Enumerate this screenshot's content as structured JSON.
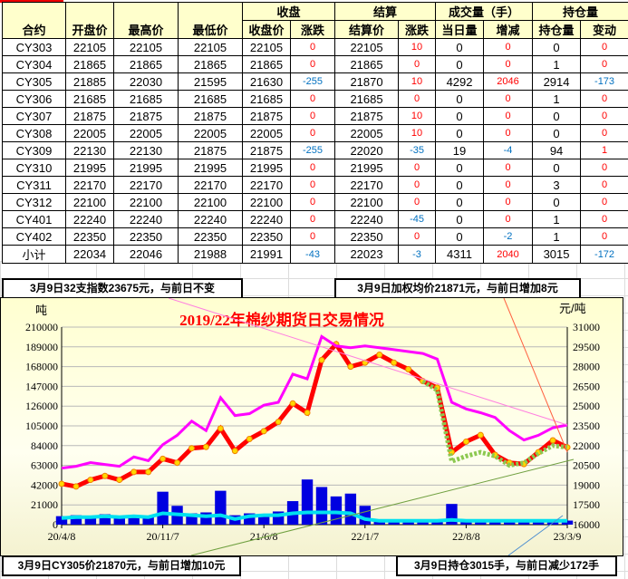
{
  "table": {
    "group_headers": {
      "close": "收盘",
      "settle": "结算",
      "volume": "成交量（手）",
      "oi": "持仓量"
    },
    "columns": [
      "合约",
      "开盘价",
      "最高价",
      "最低价",
      "收盘价",
      "涨跌",
      "结算价",
      "涨跌",
      "当日量",
      "增减",
      "持仓量",
      "变动"
    ],
    "rows": [
      [
        "CY303",
        "22105",
        "22105",
        "22105",
        "22105",
        "0",
        "22105",
        "10",
        "0",
        "0",
        "0",
        "0"
      ],
      [
        "CY304",
        "21865",
        "21865",
        "21865",
        "21865",
        "0",
        "21865",
        "0",
        "0",
        "0",
        "1",
        "0"
      ],
      [
        "CY305",
        "21885",
        "22030",
        "21595",
        "21630",
        "-255",
        "21870",
        "10",
        "4292",
        "2046",
        "2914",
        "-173"
      ],
      [
        "CY306",
        "21685",
        "21685",
        "21685",
        "21685",
        "0",
        "21685",
        "0",
        "0",
        "0",
        "1",
        "0"
      ],
      [
        "CY307",
        "21875",
        "21875",
        "21875",
        "21875",
        "0",
        "21875",
        "10",
        "0",
        "0",
        "0",
        "0"
      ],
      [
        "CY308",
        "22005",
        "22005",
        "22005",
        "22005",
        "0",
        "22005",
        "10",
        "0",
        "0",
        "0",
        "0"
      ],
      [
        "CY309",
        "22130",
        "22130",
        "21875",
        "21875",
        "-255",
        "22020",
        "-35",
        "19",
        "-4",
        "94",
        "1"
      ],
      [
        "CY310",
        "21995",
        "21995",
        "21995",
        "21995",
        "0",
        "21995",
        "0",
        "0",
        "0",
        "0",
        "0"
      ],
      [
        "CY311",
        "22170",
        "22170",
        "22170",
        "22170",
        "0",
        "22170",
        "0",
        "0",
        "0",
        "3",
        "0"
      ],
      [
        "CY312",
        "22100",
        "22100",
        "22100",
        "22100",
        "0",
        "22100",
        "0",
        "0",
        "0",
        "0",
        "0"
      ],
      [
        "CY401",
        "22240",
        "22240",
        "22240",
        "22240",
        "0",
        "22240",
        "-45",
        "0",
        "0",
        "1",
        "0"
      ],
      [
        "CY402",
        "22350",
        "22350",
        "22350",
        "22350",
        "0",
        "22350",
        "0",
        "0",
        "-2",
        "1",
        "0"
      ],
      [
        "小计",
        "22034",
        "22046",
        "21988",
        "21991",
        "-43",
        "22023",
        "-3",
        "4311",
        "2040",
        "3015",
        "-172"
      ]
    ]
  },
  "notes": {
    "index": "3月9日32支指数23675元，与前日不变",
    "weighted": "3月9日加权均价21871元，与前日增加8元",
    "cy305": "3月9日CY305价21870元，与前日增加10元",
    "oi": "3月9日持仓3015手，与前日减少172手"
  },
  "colors": {
    "up": "#ff0000",
    "down": "#0070c0",
    "price": "#ff0000",
    "price_marker": "#ffd800",
    "oi_line": "#ff00ff",
    "volume_bars": "#0000e0",
    "avg_line": "#00e0f0",
    "main_contract": "#8cc850"
  },
  "chart_data": {
    "type": "line",
    "title": "2019/22年棉纱期货日交易情况",
    "ylabel_left": "吨",
    "ylabel_right": "元/吨",
    "ylim_left": [
      0,
      210000
    ],
    "ylim_right": [
      16000,
      31000
    ],
    "yticks_left": [
      "0",
      "21000",
      "42000",
      "63000",
      "84000",
      "105000",
      "126000",
      "147000",
      "168000",
      "189000",
      "210000"
    ],
    "yticks_right": [
      "16000",
      "17500",
      "19000",
      "20500",
      "22000",
      "23500",
      "25000",
      "26500",
      "28000",
      "29500",
      "31000"
    ],
    "xticks": [
      "20/4/8",
      "20/11/7",
      "21/6/8",
      "22/1/7",
      "22/8/8",
      "23/3/9"
    ],
    "x": [
      "2020-04",
      "2020-05",
      "2020-06",
      "2020-07",
      "2020-08",
      "2020-09",
      "2020-10",
      "2020-11",
      "2020-12",
      "2021-01",
      "2021-02",
      "2021-03",
      "2021-04",
      "2021-05",
      "2021-06",
      "2021-07",
      "2021-08",
      "2021-09",
      "2021-10",
      "2021-11",
      "2021-12",
      "2022-01",
      "2022-02",
      "2022-03",
      "2022-04",
      "2022-05",
      "2022-06",
      "2022-07",
      "2022-08",
      "2022-09",
      "2022-10",
      "2022-11",
      "2022-12",
      "2023-01",
      "2023-02",
      "2023-03"
    ],
    "grid": true,
    "series": [
      {
        "axis": "right",
        "style": "price",
        "values": [
          19100,
          18900,
          19400,
          19700,
          19400,
          20000,
          20000,
          21000,
          20700,
          21800,
          21900,
          23300,
          21600,
          22500,
          23100,
          23800,
          25200,
          24500,
          28500,
          29700,
          28000,
          28300,
          28900,
          28300,
          27800,
          26900,
          26400,
          21500,
          22300,
          22800,
          21300,
          20700,
          20600,
          21500,
          22400,
          21870
        ]
      },
      {
        "axis": "right",
        "style": "main_contract",
        "values": [
          null,
          null,
          null,
          null,
          null,
          null,
          null,
          null,
          null,
          null,
          null,
          null,
          null,
          null,
          null,
          null,
          null,
          null,
          null,
          null,
          null,
          null,
          null,
          null,
          null,
          26900,
          26200,
          20800,
          21200,
          21500,
          21200,
          20500,
          20700,
          21400,
          22000,
          21870
        ]
      },
      {
        "axis": "left",
        "style": "oi_line",
        "values": [
          60000,
          62000,
          66000,
          64000,
          62000,
          72000,
          68000,
          85000,
          95000,
          110000,
          100000,
          135000,
          116000,
          118000,
          127000,
          130000,
          160000,
          155000,
          200000,
          190000,
          188000,
          190000,
          188000,
          186000,
          184000,
          182000,
          176000,
          130000,
          123000,
          119000,
          114000,
          100000,
          90000,
          95000,
          103000,
          106000
        ]
      },
      {
        "axis": "left",
        "style": "volume_bars",
        "values": [
          9000,
          10000,
          9000,
          11000,
          9000,
          10000,
          9000,
          35000,
          20000,
          12000,
          13000,
          36000,
          10000,
          12000,
          11000,
          14000,
          25000,
          48000,
          40000,
          30000,
          33000,
          20000,
          5000,
          4000,
          4000,
          3000,
          3000,
          22000,
          5000,
          4000,
          4000,
          5000,
          4000,
          5000,
          4000,
          4311
        ]
      },
      {
        "axis": "left",
        "style": "avg_line",
        "values": [
          7000,
          8000,
          8000,
          9000,
          8000,
          9000,
          8000,
          12000,
          11000,
          10000,
          9000,
          10000,
          6000,
          9000,
          10000,
          10000,
          12000,
          13000,
          13000,
          13000,
          12000,
          6000,
          4000,
          4000,
          4000,
          4000,
          4000,
          5000,
          4000,
          4000,
          4000,
          4000,
          4000,
          4000,
          4000,
          4000
        ]
      }
    ]
  }
}
